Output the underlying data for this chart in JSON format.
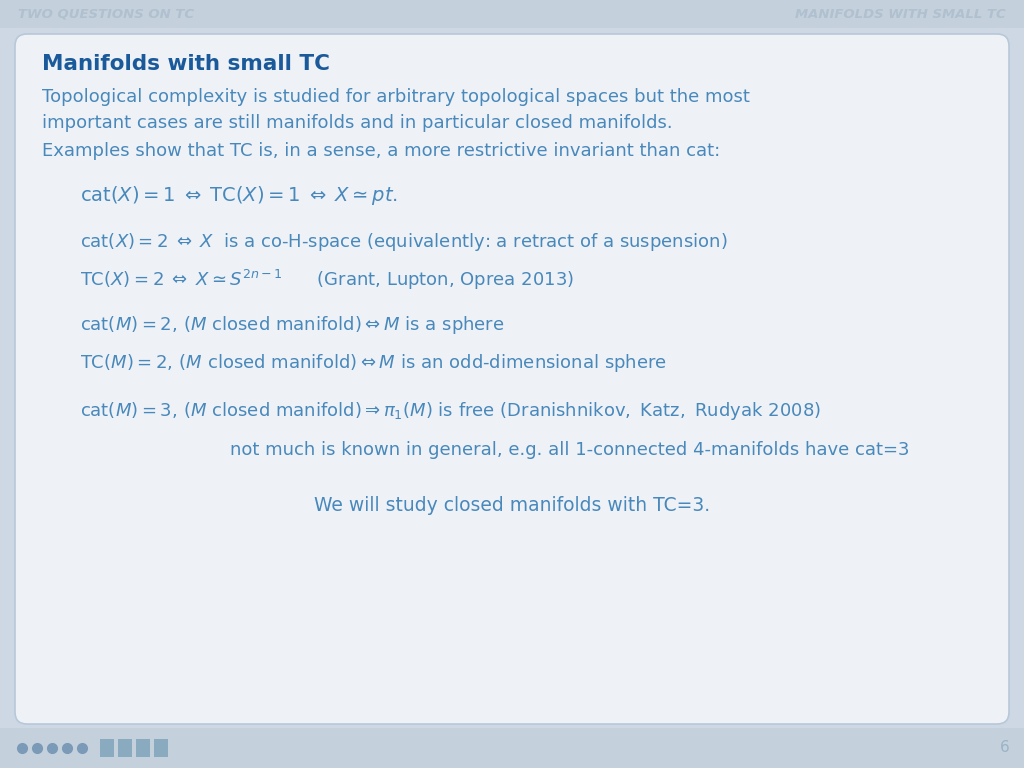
{
  "bg_color": "#cdd8e4",
  "header_bg": "#c4d0dc",
  "card_bg": "#eef2f7",
  "card_border": "#b8c8d8",
  "text_color": "#3a7abf",
  "header_text_color": "#b0c0ce",
  "title_left": "TWO QUESTIONS ON TC",
  "title_right": "MANIFOLDS WITH SMALL TC",
  "page_number": "6",
  "slide_title": "Manifolds with small TC",
  "slide_title_color": "#1a5a9a",
  "content_color": "#4888bb",
  "figsize": [
    10.24,
    7.68
  ],
  "dpi": 100
}
